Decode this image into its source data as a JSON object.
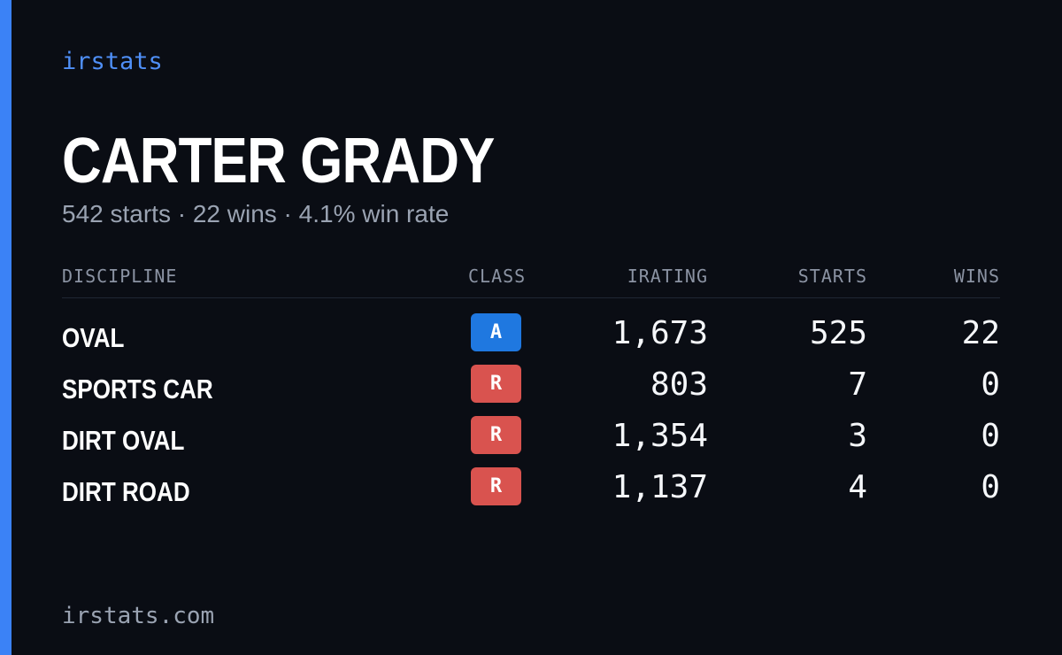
{
  "brand": {
    "name": "irstats",
    "accent_color": "#3b82f6"
  },
  "driver": {
    "name": "CARTER GRADY",
    "summary": "542 starts · 22 wins · 4.1% win rate"
  },
  "table": {
    "headers": {
      "discipline": "DISCIPLINE",
      "class": "CLASS",
      "irating": "IRATING",
      "starts": "STARTS",
      "wins": "WINS"
    },
    "rows": [
      {
        "discipline": "OVAL",
        "class": "A",
        "class_color": "#1f78e0",
        "irating": "1,673",
        "starts": "525",
        "wins": "22"
      },
      {
        "discipline": "SPORTS CAR",
        "class": "R",
        "class_color": "#d9534f",
        "irating": "803",
        "starts": "7",
        "wins": "0"
      },
      {
        "discipline": "DIRT OVAL",
        "class": "R",
        "class_color": "#d9534f",
        "irating": "1,354",
        "starts": "3",
        "wins": "0"
      },
      {
        "discipline": "DIRT ROAD",
        "class": "R",
        "class_color": "#d9534f",
        "irating": "1,137",
        "starts": "4",
        "wins": "0"
      }
    ]
  },
  "footer": {
    "url": "irstats.com"
  }
}
